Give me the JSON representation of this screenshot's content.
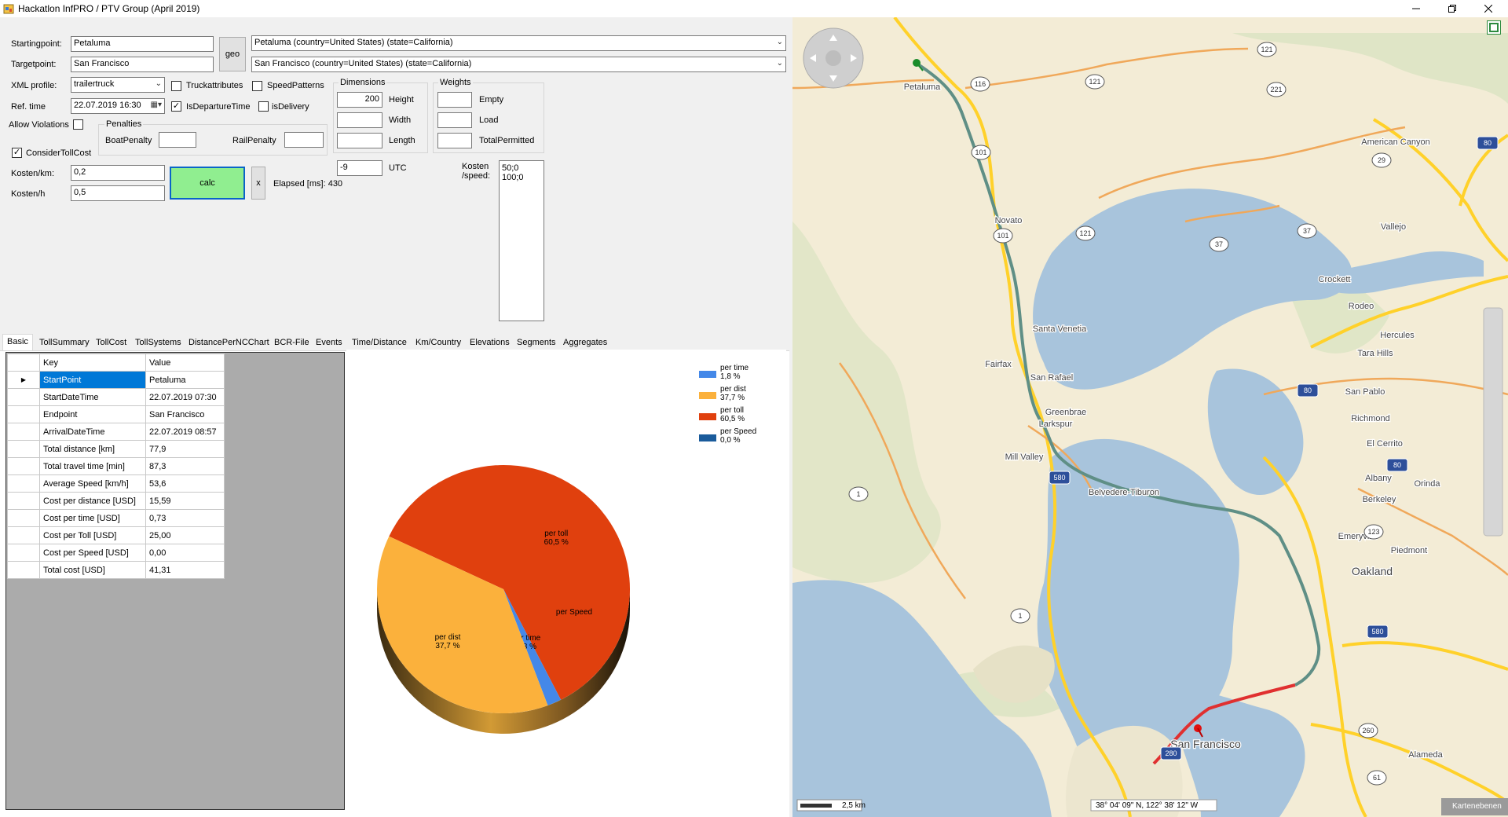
{
  "window": {
    "title": "Hackatlon InfPRO / PTV Group (April 2019)"
  },
  "form": {
    "starting_label": "Startingpoint:",
    "starting_value": "Petaluma",
    "target_label": "Targetpoint:",
    "target_value": "San Francisco",
    "geo_button": "geo",
    "start_geocode": "Petaluma (country=United States) (state=California)",
    "target_geocode": "San Francisco (country=United States) (state=California)",
    "xml_profile_label": "XML profile:",
    "xml_profile_value": "trailertruck",
    "ref_time_label": "Ref. time",
    "ref_time_value": "22.07.2019 16:30",
    "allow_violations_label": "Allow Violations",
    "truckattributes_label": "Truckattributes",
    "speedpatterns_label": "SpeedPatterns",
    "is_departure_label": "IsDepartureTime",
    "is_delivery_label": "isDelivery",
    "consider_toll_label": "ConsiderTollCost",
    "penalties_title": "Penalties",
    "boat_penalty_label": "BoatPenalty",
    "rail_penalty_label": "RailPenalty",
    "dimensions_title": "Dimensions",
    "height_label": "Height",
    "height_value": "200",
    "width_label": "Width",
    "length_label": "Length",
    "weights_title": "Weights",
    "empty_label": "Empty",
    "load_label": "Load",
    "total_permitted_label": "TotalPermitted",
    "utc_value": "-9",
    "utc_label": "UTC",
    "kosten_km_label": "Kosten/km:",
    "kosten_km_value": "0,2",
    "kosten_h_label": "Kosten/h",
    "kosten_h_value": "0,5",
    "calc_button": "calc",
    "x_button": "x",
    "elapsed": "Elapsed [ms]: 430",
    "kosten_speed_label_1": "Kosten",
    "kosten_speed_label_2": "/speed:",
    "kosten_speed_line1": "50;0",
    "kosten_speed_line2": "100;0"
  },
  "tabs": [
    "Basic",
    "TollSummary",
    "TollCost",
    "TollSystems",
    "DistancePerNCChart",
    "BCR-File",
    "Events",
    "Time/Distance",
    "Km/Country",
    "Elevations",
    "Segments",
    "Aggregates"
  ],
  "grid": {
    "col_key": "Key",
    "col_value": "Value",
    "rows": [
      {
        "key": "StartPoint",
        "value": "Petaluma"
      },
      {
        "key": "StartDateTime",
        "value": "22.07.2019 07:30"
      },
      {
        "key": "Endpoint",
        "value": "San Francisco"
      },
      {
        "key": "ArrivalDateTime",
        "value": "22.07.2019 08:57"
      },
      {
        "key": "Total distance [km]",
        "value": "77,9"
      },
      {
        "key": "Total travel time [min]",
        "value": "87,3"
      },
      {
        "key": "Average Speed [km/h]",
        "value": "53,6"
      },
      {
        "key": "Cost per distance [USD]",
        "value": "15,59"
      },
      {
        "key": "Cost per time [USD]",
        "value": "0,73"
      },
      {
        "key": "Cost per Toll [USD]",
        "value": "25,00"
      },
      {
        "key": "Cost per Speed [USD]",
        "value": "0,00"
      },
      {
        "key": "Total cost [USD]",
        "value": "41,31"
      }
    ]
  },
  "chart_data": {
    "type": "pie",
    "slices": [
      {
        "name": "per time",
        "value": 1.8,
        "label": "1,8 %",
        "color": "#4488e8"
      },
      {
        "name": "per dist",
        "value": 37.7,
        "label": "37,7 %",
        "color": "#fbb13c"
      },
      {
        "name": "per toll",
        "value": 60.5,
        "label": "60,5 %",
        "color": "#e0400e"
      },
      {
        "name": "per Speed",
        "value": 0.0,
        "label": "0,0 %",
        "color": "#1a5b9b"
      }
    ],
    "legend_position": "top-right"
  },
  "map": {
    "places": [
      {
        "name": "Petaluma"
      },
      {
        "name": "Novato"
      },
      {
        "name": "Santa Venetia"
      },
      {
        "name": "Fairfax"
      },
      {
        "name": "San Rafael"
      },
      {
        "name": "Greenbrae"
      },
      {
        "name": "Larkspur"
      },
      {
        "name": "Mill Valley"
      },
      {
        "name": "Belvedere-Tiburon"
      },
      {
        "name": "San Francisco"
      },
      {
        "name": "Oakland"
      },
      {
        "name": "Emeryville"
      },
      {
        "name": "Berkeley"
      },
      {
        "name": "Albany"
      },
      {
        "name": "El Cerrito"
      },
      {
        "name": "Richmond"
      },
      {
        "name": "San Pablo"
      },
      {
        "name": "Hercules"
      },
      {
        "name": "Rodeo"
      },
      {
        "name": "Crockett"
      },
      {
        "name": "Vallejo"
      },
      {
        "name": "American Canyon"
      },
      {
        "name": "Tara Hills"
      },
      {
        "name": "Piedmont"
      },
      {
        "name": "Orinda"
      },
      {
        "name": "Alameda"
      }
    ],
    "shields": [
      "116",
      "101",
      "121",
      "221",
      "121",
      "37",
      "37",
      "29",
      "80",
      "101",
      "580",
      "80",
      "123",
      "580",
      "1",
      "1",
      "80",
      "280",
      "260",
      "61",
      "121"
    ],
    "scale_label": "2,5 km",
    "coords": "38° 04' 09\" N, 122° 38' 12\" W",
    "layers_button": "Kartenebenen"
  }
}
